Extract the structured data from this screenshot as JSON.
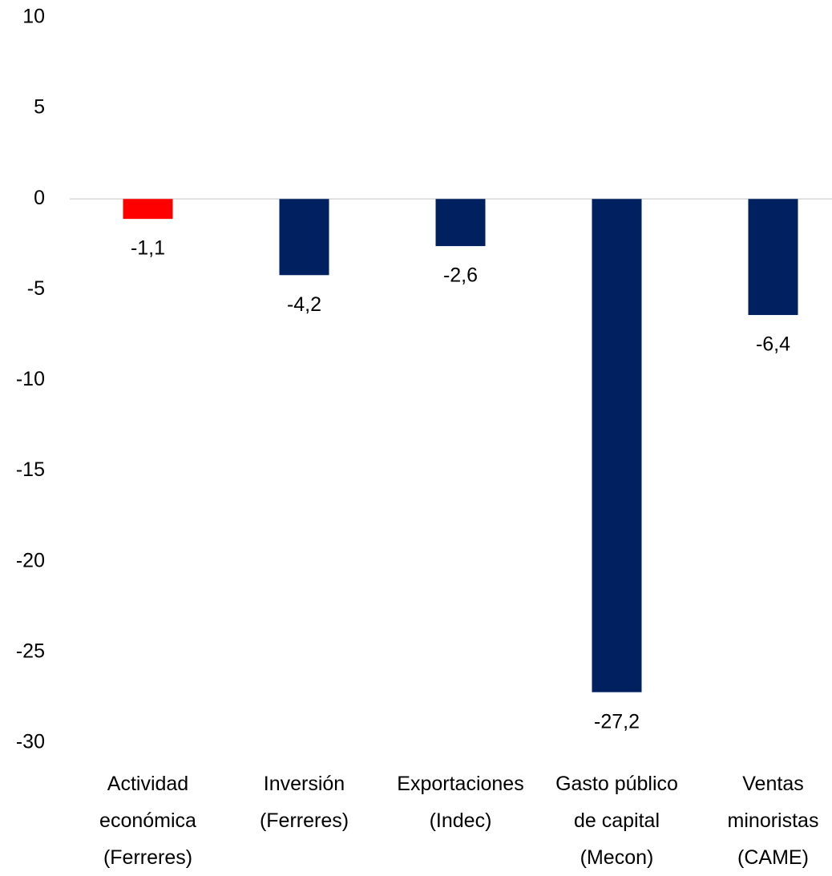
{
  "chart_data": {
    "type": "bar",
    "categories": [
      "Actividad\neconómica\n(Ferreres)",
      "Inversión\n(Ferreres)",
      "Exportaciones\n(Indec)",
      "Gasto público\nde capital\n(Mecon)",
      "Ventas\nminoristas\n(CAME)"
    ],
    "values": [
      -1.1,
      -4.2,
      -2.6,
      -27.2,
      -6.4
    ],
    "value_labels": [
      "-1,1",
      "-4,2",
      "-2,6",
      "-27,2",
      "-6,4"
    ],
    "colors": [
      "#ff0000",
      "#002060",
      "#002060",
      "#002060",
      "#002060"
    ],
    "ylim": [
      -30,
      10
    ],
    "yticks": [
      10,
      5,
      0,
      -5,
      -10,
      -15,
      -20,
      -25,
      -30
    ],
    "grid": false
  }
}
